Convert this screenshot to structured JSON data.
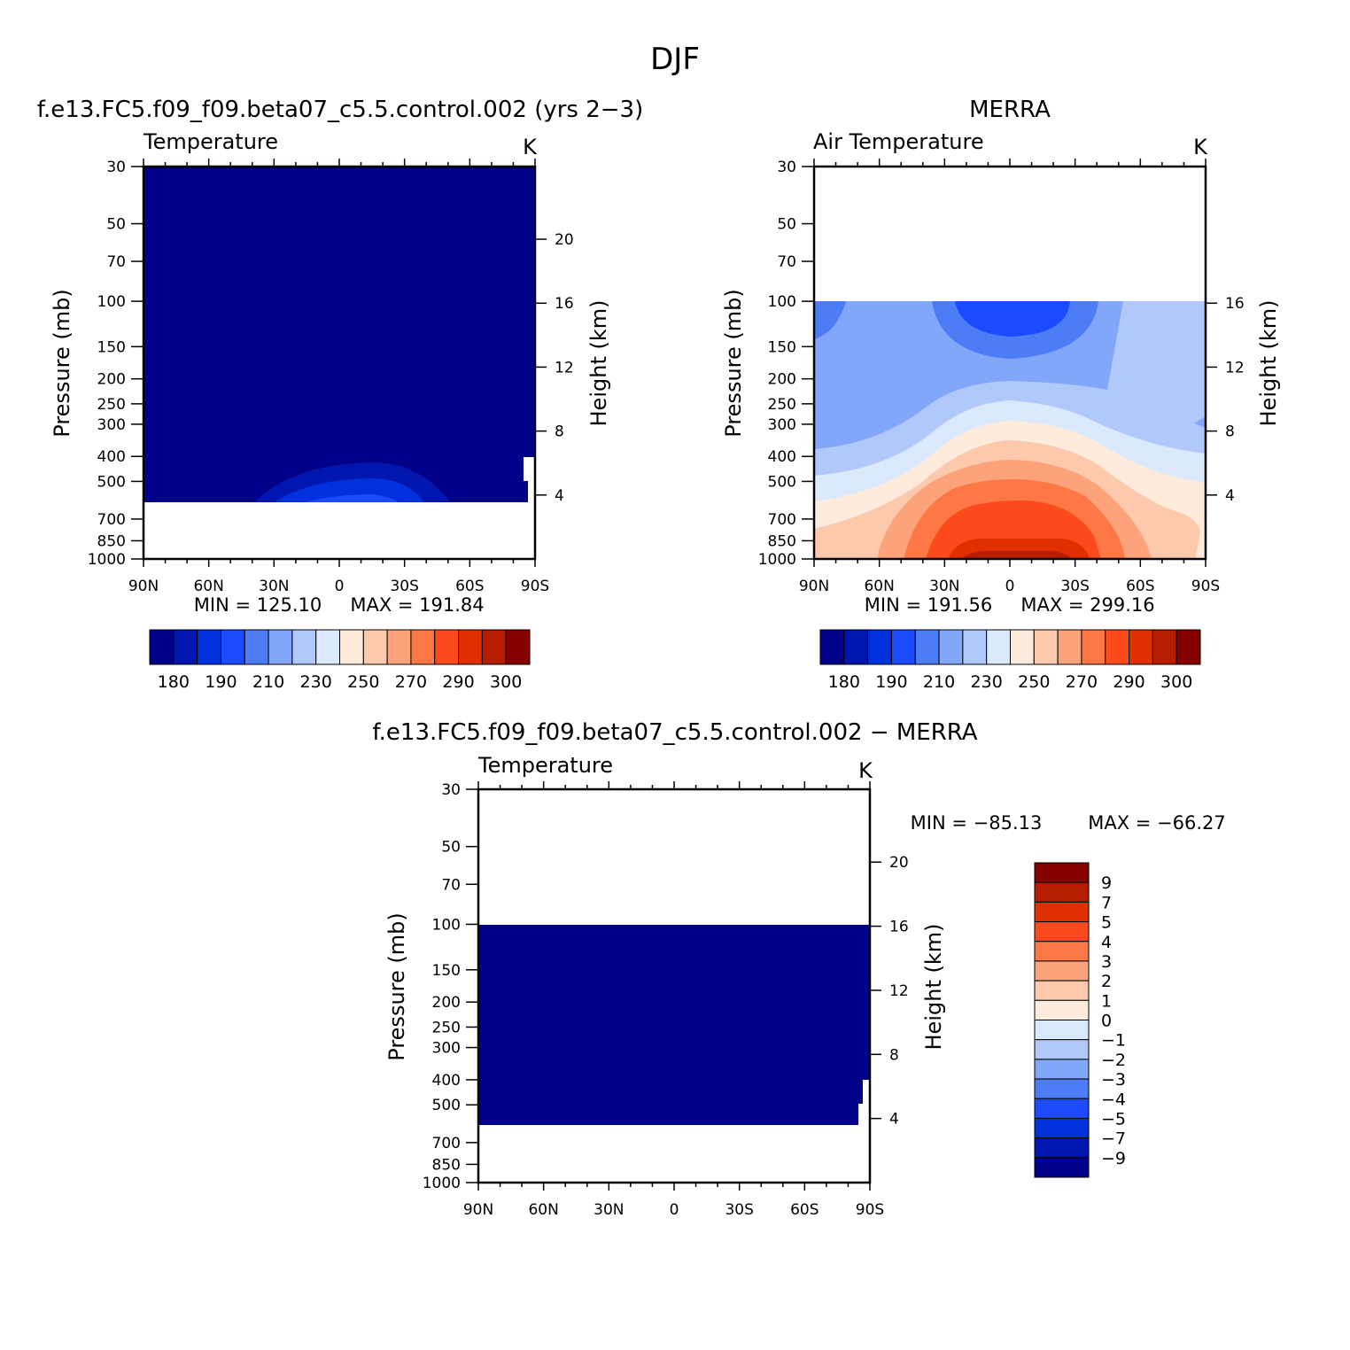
{
  "figure": {
    "season": "DJF"
  },
  "colors": {
    "scale": [
      "#000089",
      "#0016ae",
      "#0031dc",
      "#1c4aff",
      "#4d7cf7",
      "#82a6f9",
      "#b1c8fb",
      "#dae9fd",
      "#feebdb",
      "#fdc9ac",
      "#fca37b",
      "#fe7845",
      "#fd4a1c",
      "#e03000",
      "#b61c00",
      "#860000"
    ]
  },
  "chart_data": [
    {
      "type": "contour",
      "name": "model",
      "panel_title": "f.e13.FC5.f09_f09.beta07_c5.5.control.002 (yrs 2−3)",
      "variable": "Temperature",
      "units": "K",
      "ylabel": "Pressure (mb)",
      "ylabel_right": "Height (km)",
      "pressure_ticks": [
        30,
        50,
        70,
        100,
        150,
        200,
        250,
        300,
        400,
        500,
        700,
        850,
        1000
      ],
      "height_ticks": [
        20,
        16,
        12,
        8,
        4
      ],
      "lat_ticks": [
        "90N",
        "60N",
        "30N",
        "0",
        "30S",
        "60S",
        "90S"
      ],
      "ylim": [
        30,
        1000
      ],
      "min_label": "MIN = 125.10",
      "max_label": "MAX = 191.84",
      "min": 125.1,
      "max": 191.84,
      "colorbar_levels": [
        "180",
        "190",
        "210",
        "230",
        "250",
        "270",
        "290",
        "300"
      ]
    },
    {
      "type": "contour",
      "name": "obs",
      "panel_title": "MERRA",
      "variable": "Air Temperature",
      "units": "K",
      "ylabel": "Pressure (mb)",
      "ylabel_right": "Height (km)",
      "pressure_ticks": [
        30,
        50,
        70,
        100,
        150,
        200,
        250,
        300,
        400,
        500,
        700,
        850,
        1000
      ],
      "height_ticks": [
        16,
        12,
        8,
        4
      ],
      "lat_ticks": [
        "90N",
        "60N",
        "30N",
        "0",
        "30S",
        "60S",
        "90S"
      ],
      "ylim": [
        30,
        1000
      ],
      "min_label": "MIN = 191.56",
      "max_label": "MAX = 299.16",
      "min": 191.56,
      "max": 299.16,
      "colorbar_levels": [
        "180",
        "190",
        "210",
        "230",
        "250",
        "270",
        "290",
        "300"
      ]
    },
    {
      "type": "contour",
      "name": "diff",
      "panel_title": "f.e13.FC5.f09_f09.beta07_c5.5.control.002 − MERRA",
      "variable": "Temperature",
      "units": "K",
      "ylabel": "Pressure (mb)",
      "ylabel_right": "Height (km)",
      "pressure_ticks": [
        30,
        50,
        70,
        100,
        150,
        200,
        250,
        300,
        400,
        500,
        700,
        850,
        1000
      ],
      "height_ticks": [
        20,
        16,
        12,
        8,
        4
      ],
      "lat_ticks": [
        "90N",
        "60N",
        "30N",
        "0",
        "30S",
        "60S",
        "90S"
      ],
      "ylim": [
        30,
        1000
      ],
      "min_label": "MIN = −85.13",
      "max_label": "MAX = −66.27",
      "min": -85.13,
      "max": -66.27,
      "colorbar_levels": [
        "9",
        "7",
        "5",
        "4",
        "3",
        "2",
        "1",
        "0",
        "−1",
        "−2",
        "−3",
        "−4",
        "−5",
        "−7",
        "−9"
      ]
    }
  ]
}
